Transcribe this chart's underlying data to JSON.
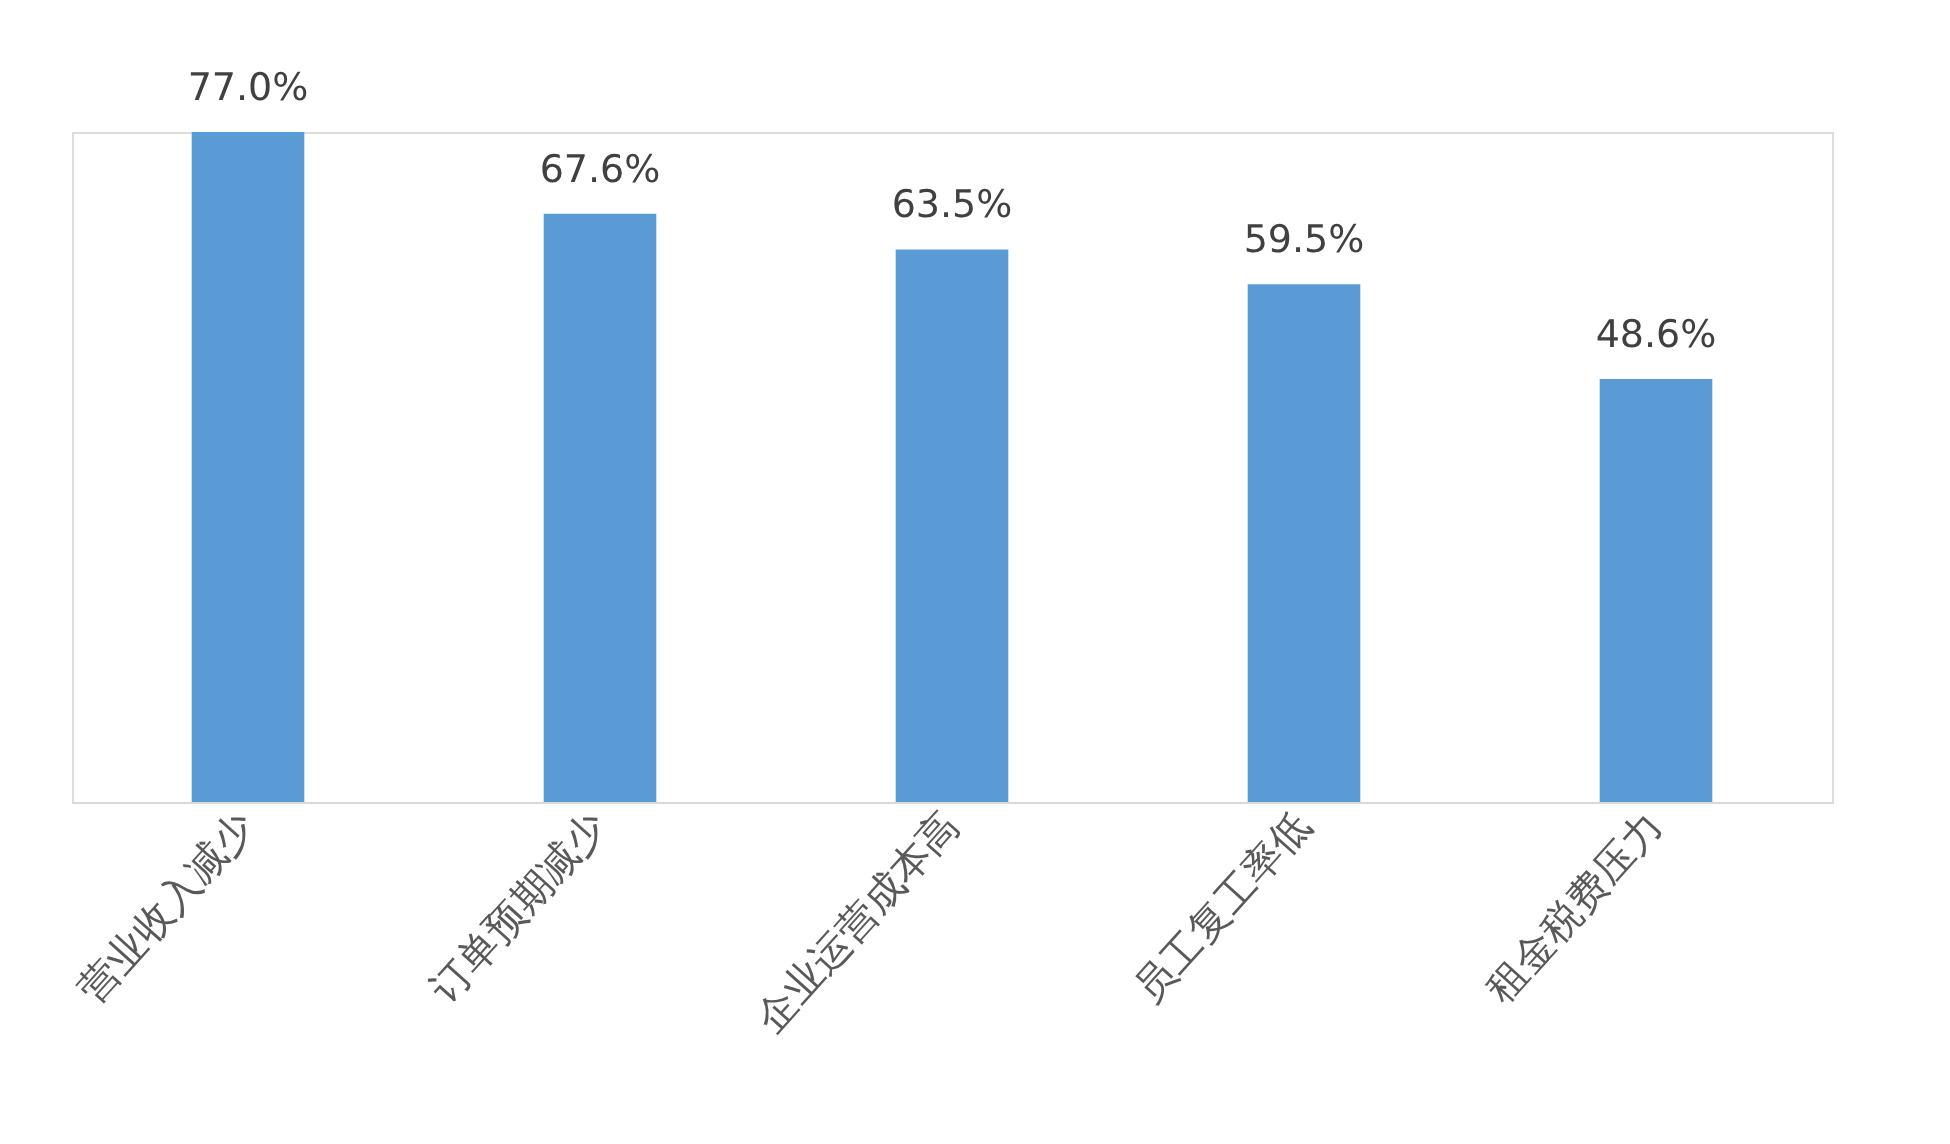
{
  "chart_data": {
    "type": "bar",
    "categories": [
      "营业收入减少",
      "订单预期减少",
      "企业运营成本高",
      "员工复工率低",
      "租金税费压力"
    ],
    "values": [
      77.0,
      67.6,
      63.5,
      59.5,
      48.6
    ],
    "value_labels": [
      "77.0%",
      "67.6%",
      "63.5%",
      "59.5%",
      "48.6%"
    ],
    "color": "#5b9bd5"
  }
}
